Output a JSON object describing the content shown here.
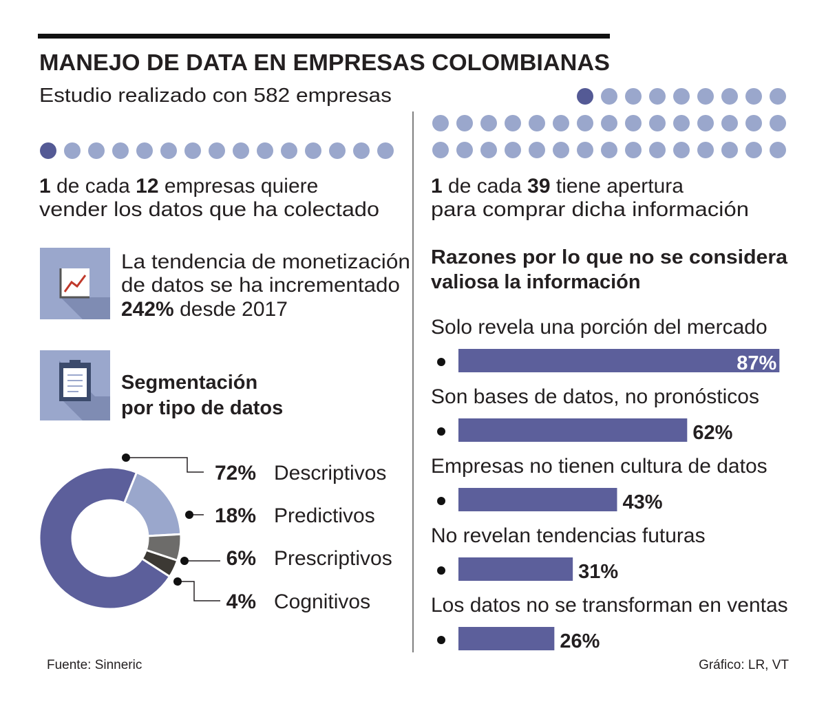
{
  "header": {
    "title": "MANEJO DE DATA EN EMPRESAS COLOMBIANAS",
    "subtitle": "Estudio realizado con 582 empresas"
  },
  "sell_stat": {
    "count": 1,
    "connector": "de cada",
    "total": 12,
    "line1_rest": "empresas quiere",
    "line2": "vender los datos que ha colectado"
  },
  "buy_stat": {
    "count": 1,
    "connector": "de cada",
    "total": 39,
    "line1_rest": "tiene apertura",
    "line2": "para comprar dicha información"
  },
  "trend": {
    "line1": "La tendencia de monetización",
    "line2": "de datos se ha incrementado",
    "highlight": "242%",
    "line3_rest": "desde 2017"
  },
  "chart_data": [
    {
      "type": "donut",
      "title": [
        "Segmentación",
        "por tipo de datos"
      ],
      "categories": [
        "Descriptivos",
        "Predictivos",
        "Prescriptivos",
        "Cognitivos"
      ],
      "values": [
        72,
        18,
        6,
        4
      ],
      "value_labels": [
        "72%",
        "18%",
        "6%",
        "4%"
      ],
      "colors": [
        "#5c5f9b",
        "#9aa7cc",
        "#6d6c6a",
        "#3c3934"
      ]
    },
    {
      "type": "bar",
      "orientation": "horizontal",
      "title": [
        "Razones por lo que no se considera",
        "valiosa la información"
      ],
      "categories": [
        "Solo revela una porción del mercado",
        "Son bases de datos, no pronósticos",
        "Empresas no tienen cultura de datos",
        "No revelan tendencias futuras",
        "Los datos no se transforman en ventas"
      ],
      "values": [
        87,
        62,
        43,
        31,
        26
      ],
      "value_labels": [
        "87%",
        "62%",
        "43%",
        "31%",
        "26%"
      ],
      "color": "#5c5f9b",
      "xlim": [
        0,
        100
      ]
    }
  ],
  "footer": {
    "source": "Fuente: Sinneric",
    "credit": "Gráfico: LR, VT"
  }
}
